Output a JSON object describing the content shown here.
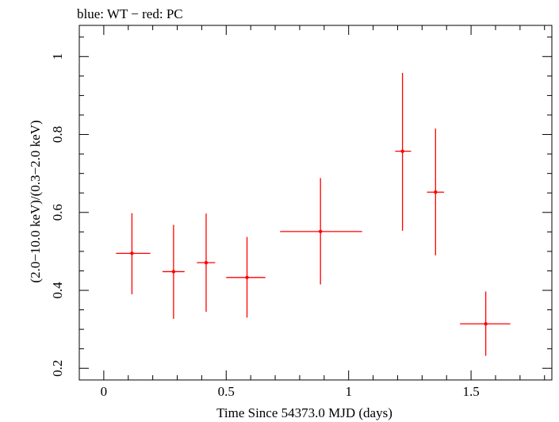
{
  "chart_data": {
    "type": "scatter",
    "title": "blue: WT − red: PC",
    "xlabel": "Time Since 54373.0 MJD (days)",
    "ylabel": "(2.0−10.0 keV)/(0.3−2.0 keV)",
    "xlim": [
      -0.1,
      1.83
    ],
    "ylim": [
      0.17,
      1.08
    ],
    "xticks": [
      0,
      0.5,
      1,
      1.5
    ],
    "xtick_labels": [
      "0",
      "0.5",
      "1",
      "1.5"
    ],
    "yticks": [
      0.2,
      0.4,
      0.6,
      0.8,
      1
    ],
    "ytick_labels": [
      "0.2",
      "0.4",
      "0.6",
      "0.8",
      "1"
    ],
    "grid": false,
    "series": [
      {
        "name": "PC",
        "color": "#ff0000",
        "points": [
          {
            "x": 0.115,
            "y": 0.495,
            "xerr": [
              0.05,
              0.19
            ],
            "yerr": [
              0.39,
              0.598
            ]
          },
          {
            "x": 0.285,
            "y": 0.448,
            "xerr": [
              0.24,
              0.33
            ],
            "yerr": [
              0.327,
              0.568
            ]
          },
          {
            "x": 0.418,
            "y": 0.471,
            "xerr": [
              0.38,
              0.455
            ],
            "yerr": [
              0.345,
              0.597
            ]
          },
          {
            "x": 0.585,
            "y": 0.433,
            "xerr": [
              0.5,
              0.66
            ],
            "yerr": [
              0.33,
              0.537
            ]
          },
          {
            "x": 0.885,
            "y": 0.551,
            "xerr": [
              0.72,
              1.055
            ],
            "yerr": [
              0.415,
              0.688
            ]
          },
          {
            "x": 1.22,
            "y": 0.757,
            "xerr": [
              1.19,
              1.255
            ],
            "yerr": [
              0.553,
              0.958
            ]
          },
          {
            "x": 1.355,
            "y": 0.652,
            "xerr": [
              1.32,
              1.39
            ],
            "yerr": [
              0.49,
              0.815
            ]
          },
          {
            "x": 1.56,
            "y": 0.314,
            "xerr": [
              1.455,
              1.66
            ],
            "yerr": [
              0.232,
              0.397
            ]
          }
        ]
      }
    ]
  }
}
